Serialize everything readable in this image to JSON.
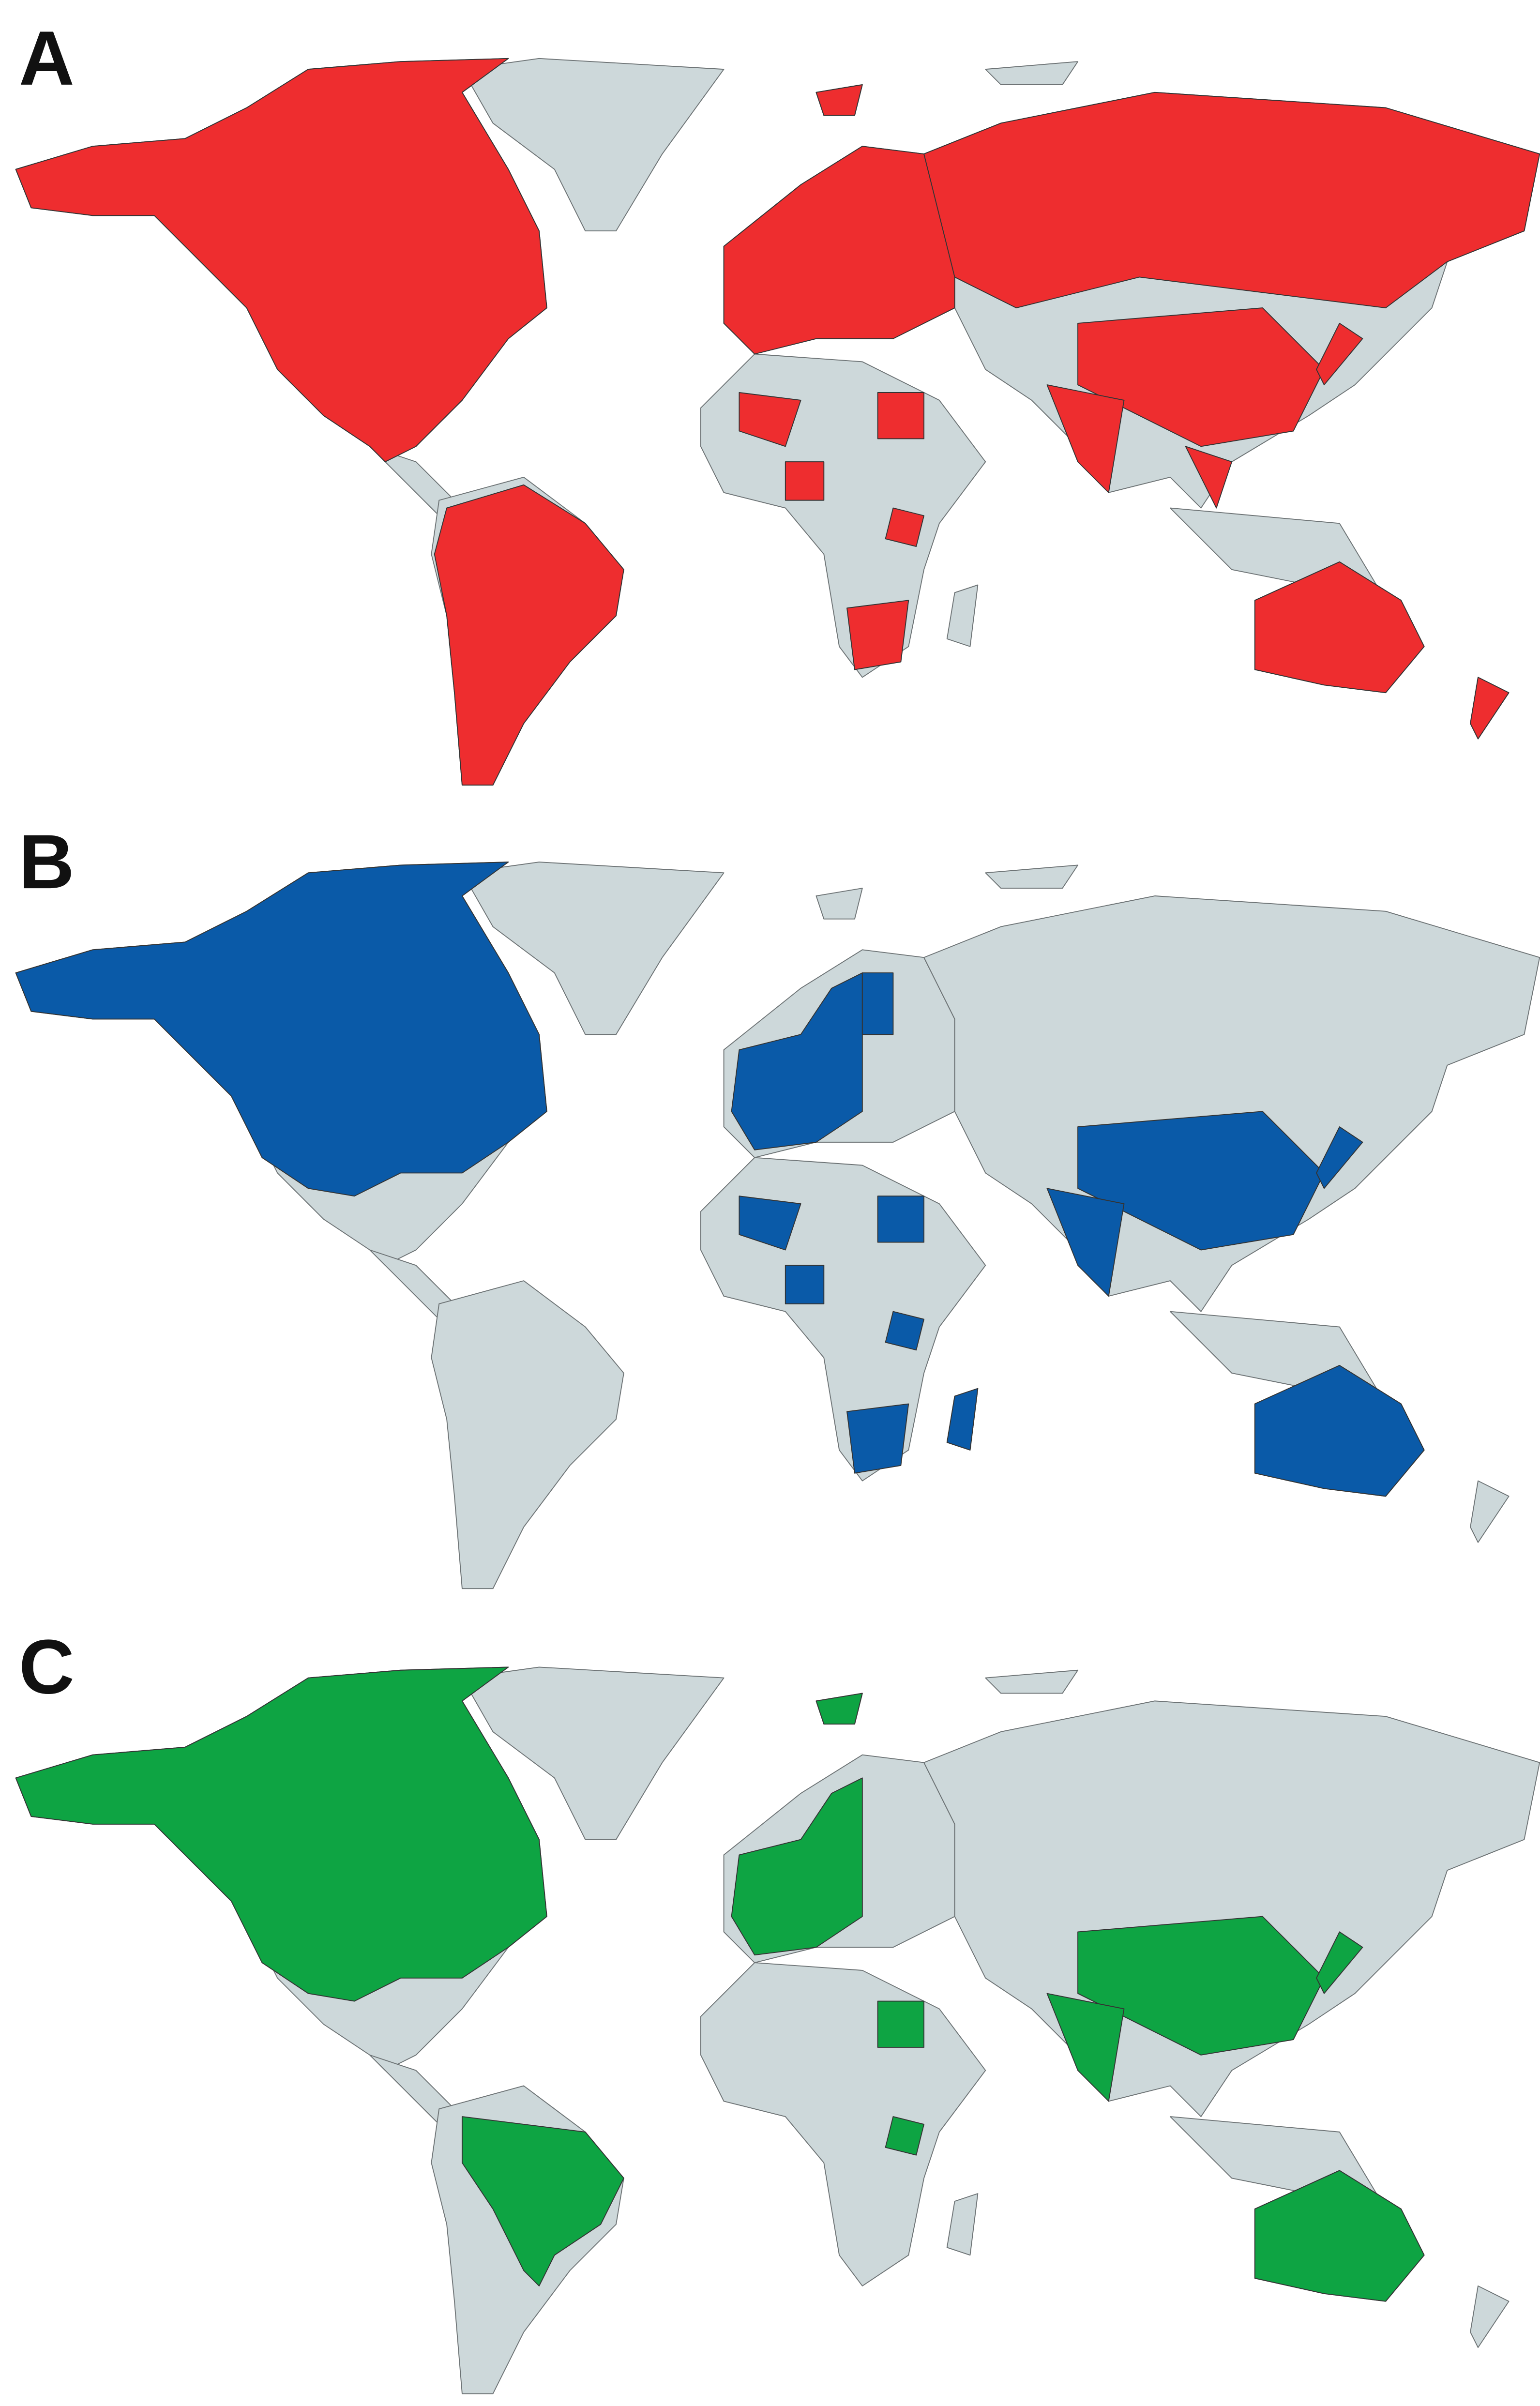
{
  "panels": [
    {
      "label": "A",
      "color": "#ee2d2f"
    },
    {
      "label": "B",
      "color": "#0a5aa8"
    },
    {
      "label": "C",
      "color": "#0ea443"
    }
  ]
}
